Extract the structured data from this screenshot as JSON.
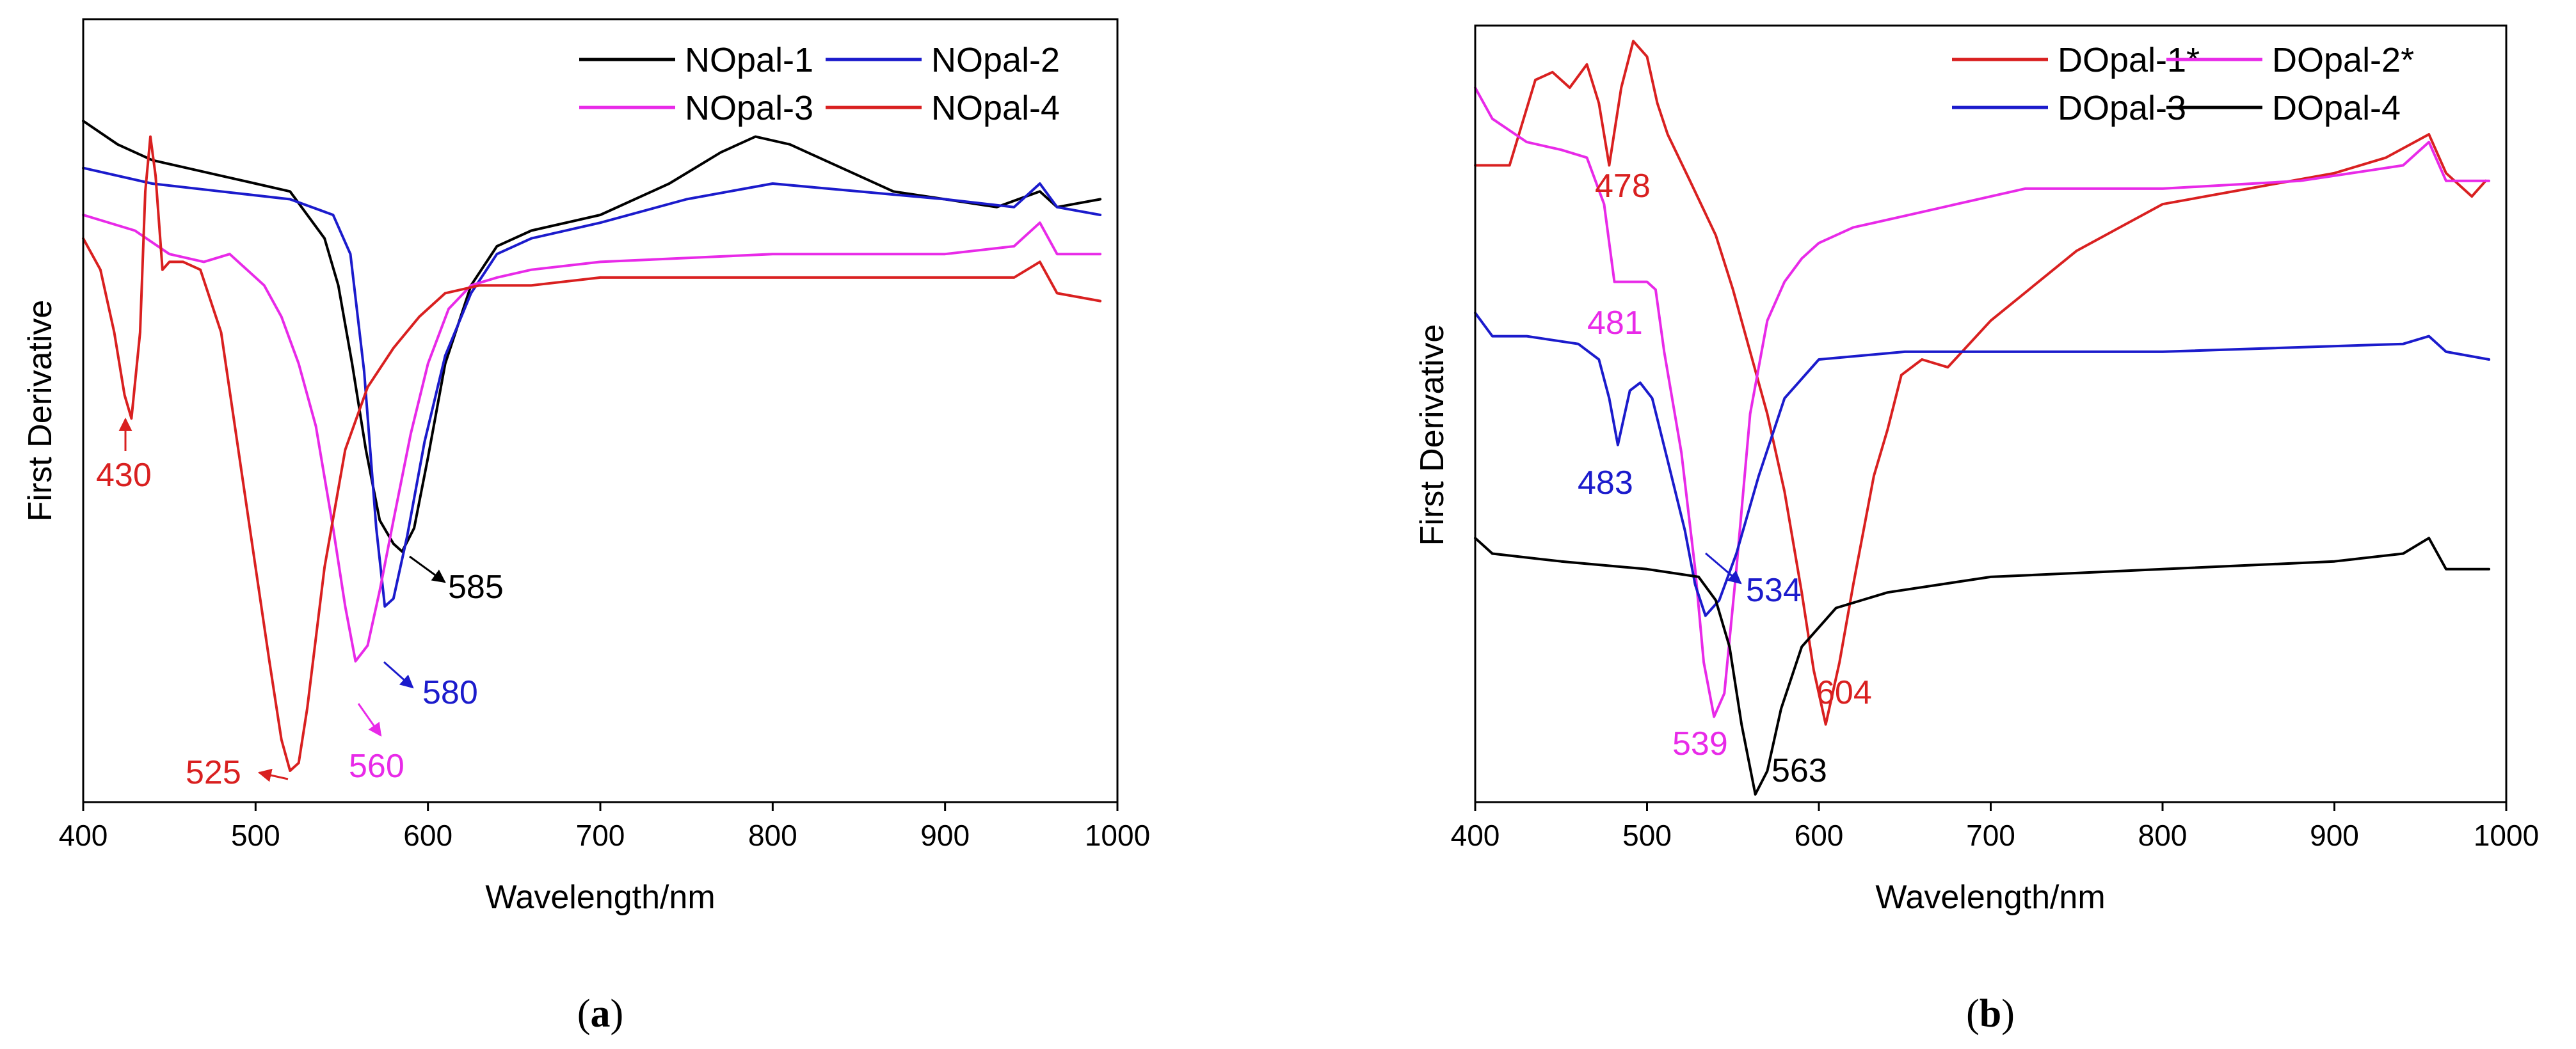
{
  "chart_data": [
    {
      "type": "line",
      "panel": "(a)",
      "panel_bold": "a",
      "xlabel": "Wavelength/nm",
      "ylabel": "First Derivative",
      "xlim": [
        400,
        1000
      ],
      "ylim": [
        0,
        100
      ],
      "xticks": [
        400,
        500,
        600,
        700,
        800,
        900,
        1000
      ],
      "legend_position": "top-right",
      "series": [
        {
          "name": "NOpal-1",
          "color": "#000000",
          "x": [
            400,
            420,
            440,
            460,
            480,
            500,
            520,
            540,
            548,
            556,
            564,
            572,
            580,
            585,
            592,
            600,
            610,
            625,
            640,
            660,
            700,
            740,
            770,
            790,
            810,
            840,
            870,
            900,
            930,
            955,
            965,
            990
          ],
          "y": [
            87,
            84,
            82,
            81,
            80,
            79,
            78,
            72,
            66,
            56,
            45,
            36,
            33,
            32,
            35,
            44,
            56,
            66,
            71,
            73,
            75,
            79,
            83,
            85,
            84,
            81,
            78,
            77,
            76,
            78,
            76,
            77
          ]
        },
        {
          "name": "NOpal-2",
          "color": "#1b1bcc",
          "x": [
            400,
            440,
            480,
            520,
            545,
            555,
            563,
            570,
            575,
            580,
            588,
            598,
            610,
            625,
            640,
            660,
            700,
            750,
            800,
            850,
            900,
            940,
            955,
            965,
            990
          ],
          "y": [
            81,
            79,
            78,
            77,
            75,
            70,
            55,
            35,
            25,
            26,
            34,
            46,
            57,
            65,
            70,
            72,
            74,
            77,
            79,
            78,
            77,
            76,
            79,
            76,
            75
          ]
        },
        {
          "name": "NOpal-3",
          "color": "#e82ae8",
          "x": [
            400,
            430,
            450,
            470,
            485,
            495,
            505,
            515,
            525,
            535,
            545,
            552,
            558,
            565,
            572,
            580,
            590,
            600,
            612,
            625,
            640,
            660,
            700,
            800,
            900,
            940,
            955,
            965,
            990
          ],
          "y": [
            75,
            73,
            70,
            69,
            70,
            68,
            66,
            62,
            56,
            48,
            35,
            25,
            18,
            20,
            27,
            36,
            47,
            56,
            63,
            66,
            67,
            68,
            69,
            70,
            70,
            71,
            74,
            70,
            70
          ]
        },
        {
          "name": "NOpal-4",
          "color": "#d92020",
          "x": [
            400,
            410,
            418,
            424,
            428,
            433,
            436,
            439,
            442,
            446,
            450,
            458,
            468,
            480,
            490,
            500,
            508,
            515,
            520,
            525,
            530,
            540,
            552,
            565,
            580,
            595,
            610,
            630,
            660,
            700,
            800,
            900,
            940,
            955,
            965,
            990
          ],
          "y": [
            72,
            68,
            60,
            52,
            49,
            60,
            78,
            85,
            80,
            68,
            69,
            69,
            68,
            60,
            45,
            30,
            18,
            8,
            4,
            5,
            12,
            30,
            45,
            53,
            58,
            62,
            65,
            66,
            66,
            67,
            67,
            67,
            67,
            69,
            65,
            64
          ]
        }
      ],
      "annotations": [
        {
          "text": "430",
          "color": "#d92020"
        },
        {
          "text": "585",
          "color": "#000000"
        },
        {
          "text": "580",
          "color": "#1b1bcc"
        },
        {
          "text": "560",
          "color": "#e82ae8"
        },
        {
          "text": "525",
          "color": "#d92020"
        }
      ]
    },
    {
      "type": "line",
      "panel": "(b)",
      "panel_bold": "b",
      "xlabel": "Wavelength/nm",
      "ylabel": "First Derivative",
      "xlim": [
        400,
        1000
      ],
      "ylim": [
        0,
        100
      ],
      "xticks": [
        400,
        500,
        600,
        700,
        800,
        900,
        1000
      ],
      "legend_position": "top-right",
      "series": [
        {
          "name": "DOpal-1*",
          "color": "#d92020",
          "x": [
            400,
            420,
            435,
            445,
            455,
            465,
            472,
            478,
            485,
            492,
            500,
            506,
            512,
            525,
            540,
            550,
            560,
            570,
            580,
            590,
            597,
            604,
            612,
            620,
            632,
            640,
            648,
            660,
            675,
            700,
            750,
            800,
            850,
            900,
            930,
            955,
            965,
            980,
            988
          ],
          "y": [
            82,
            82,
            93,
            94,
            92,
            95,
            90,
            82,
            92,
            98,
            96,
            90,
            86,
            80,
            73,
            66,
            58,
            50,
            40,
            27,
            17,
            10,
            18,
            28,
            42,
            48,
            55,
            57,
            56,
            62,
            71,
            77,
            79,
            81,
            83,
            86,
            81,
            78,
            80
          ]
        },
        {
          "name": "DOpal-2*",
          "color": "#e82ae8",
          "x": [
            400,
            410,
            430,
            450,
            465,
            475,
            481,
            490,
            500,
            505,
            510,
            520,
            528,
            533,
            539,
            545,
            552,
            560,
            570,
            580,
            590,
            600,
            620,
            660,
            720,
            800,
            880,
            940,
            955,
            965,
            990
          ],
          "y": [
            92,
            88,
            85,
            84,
            83,
            77,
            67,
            67,
            67,
            66,
            58,
            45,
            30,
            18,
            11,
            14,
            30,
            50,
            62,
            67,
            70,
            72,
            74,
            76,
            79,
            79,
            80,
            82,
            85,
            80,
            80
          ]
        },
        {
          "name": "DOpal-3",
          "color": "#1b1bcc",
          "x": [
            400,
            410,
            430,
            460,
            472,
            478,
            483,
            490,
            496,
            503,
            512,
            522,
            528,
            534,
            542,
            552,
            565,
            580,
            600,
            650,
            800,
            940,
            955,
            965,
            990
          ],
          "y": [
            63,
            60,
            60,
            59,
            57,
            52,
            46,
            53,
            54,
            52,
            44,
            35,
            28,
            24,
            26,
            32,
            42,
            52,
            57,
            58,
            58,
            59,
            60,
            58,
            57
          ]
        },
        {
          "name": "DOpal-4",
          "color": "#000000",
          "x": [
            400,
            410,
            450,
            500,
            530,
            540,
            548,
            555,
            563,
            570,
            578,
            590,
            610,
            640,
            700,
            800,
            900,
            940,
            955,
            965,
            990
          ],
          "y": [
            34,
            32,
            31,
            30,
            29,
            26,
            20,
            10,
            1,
            4,
            12,
            20,
            25,
            27,
            29,
            30,
            31,
            32,
            34,
            30,
            30
          ]
        }
      ],
      "annotations": [
        {
          "text": "478",
          "color": "#d92020"
        },
        {
          "text": "481",
          "color": "#e82ae8"
        },
        {
          "text": "483",
          "color": "#1b1bcc"
        },
        {
          "text": "534",
          "color": "#1b1bcc"
        },
        {
          "text": "604",
          "color": "#d92020"
        },
        {
          "text": "539",
          "color": "#e82ae8"
        },
        {
          "text": "563",
          "color": "#000000"
        }
      ]
    }
  ]
}
